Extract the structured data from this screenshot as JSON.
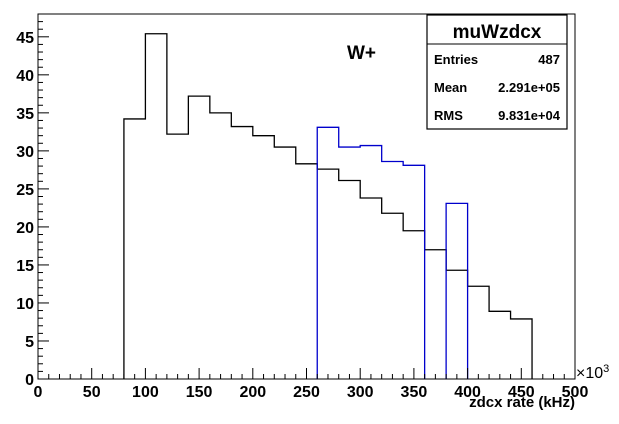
{
  "chart_data": {
    "type": "histogram",
    "annotation": "W+",
    "xlabel": "zdcx rate (kHz)",
    "x_multiplier": "×10",
    "x_multiplier_exp": "3",
    "xlim": [
      0,
      500
    ],
    "ylim": [
      0,
      48
    ],
    "x_ticks": [
      "0",
      "50",
      "100",
      "150",
      "200",
      "250",
      "300",
      "350",
      "400",
      "450",
      "500"
    ],
    "y_ticks": [
      "0",
      "5",
      "10",
      "15",
      "20",
      "25",
      "30",
      "35",
      "40",
      "45"
    ],
    "bin_edges": [
      0,
      20,
      40,
      60,
      80,
      100,
      120,
      140,
      160,
      180,
      200,
      220,
      240,
      260,
      280,
      300,
      320,
      340,
      360,
      380,
      400,
      420,
      440,
      460,
      480,
      500
    ],
    "series": [
      {
        "color": "#000000",
        "values": [
          0,
          0,
          0,
          0,
          34.2,
          45.4,
          32.2,
          37.2,
          35.0,
          33.2,
          32.0,
          30.5,
          28.3,
          27.6,
          26.1,
          23.8,
          21.8,
          19.5,
          17.0,
          14.3,
          12.2,
          8.9,
          7.9,
          0,
          0
        ]
      },
      {
        "color": "#0000cc",
        "values": [
          0,
          0,
          0,
          0,
          0,
          0,
          0,
          0,
          0,
          0,
          0,
          0,
          0,
          33.1,
          30.5,
          30.7,
          28.6,
          28.1,
          0,
          23.1,
          0,
          0,
          0,
          0,
          0
        ]
      }
    ]
  },
  "stats_box": {
    "title": "muWzdcx",
    "rows": [
      {
        "label": "Entries",
        "value": "487"
      },
      {
        "label": "Mean",
        "value": "2.291e+05"
      },
      {
        "label": "RMS",
        "value": "9.831e+04"
      }
    ]
  }
}
